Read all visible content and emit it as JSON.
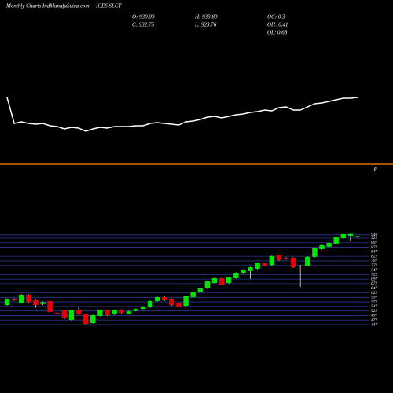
{
  "chart_data": {
    "type": "candlestick",
    "title": "Monthly Charts IndMunafaSutra.com",
    "symbol": "ICES SLCT",
    "info": [
      "O: 930.00",
      "H: 933.80",
      "OC: 0.3",
      "C: 932.75",
      "L: 923.76",
      "OH: 0.41",
      "OL: 0.68"
    ],
    "categories": [
      null,
      null,
      null,
      null,
      null,
      null,
      null,
      null,
      null,
      null,
      null,
      null,
      null,
      null,
      null,
      null,
      null,
      null,
      null,
      null,
      null,
      null,
      null,
      null,
      null,
      null,
      null,
      null,
      null,
      null,
      null,
      null,
      null,
      null,
      null,
      null,
      null,
      null,
      null,
      null,
      null,
      null,
      null,
      null,
      null,
      null,
      null,
      null,
      null,
      null
    ],
    "open": [
      555,
      590,
      568,
      611,
      581,
      560,
      577,
      512,
      525,
      473,
      525,
      503,
      456,
      495,
      525,
      503,
      529,
      508,
      522,
      533,
      542,
      577,
      598,
      590,
      564,
      551,
      598,
      628,
      646,
      676,
      702,
      676,
      702,
      732,
      741,
      754,
      784,
      775,
      827,
      814,
      814,
      771,
      771,
      819,
      862,
      875,
      892,
      922,
      935,
      930.0
    ],
    "high": [
      592,
      593,
      614,
      615,
      584,
      575,
      580,
      515,
      528,
      527,
      546,
      506,
      502,
      528,
      528,
      527,
      531,
      523,
      536,
      548,
      580,
      601,
      602,
      592,
      566,
      605,
      631,
      649,
      688,
      705,
      705,
      709,
      735,
      752,
      765,
      787,
      787,
      826,
      830,
      817,
      817,
      775,
      822,
      869,
      886,
      899,
      930,
      947,
      950,
      933.8
    ],
    "low": [
      552,
      578,
      566,
      566,
      540,
      555,
      510,
      505,
      475,
      470,
      500,
      447,
      452,
      492,
      496,
      500,
      508,
      505,
      520,
      531,
      540,
      574,
      578,
      551,
      543,
      548,
      596,
      626,
      643,
      673,
      663,
      672,
      699,
      729,
      698,
      750,
      768,
      772,
      798,
      803,
      758,
      654,
      768,
      816,
      859,
      872,
      889,
      918,
      905,
      923.76
    ],
    "close": [
      590,
      581,
      611,
      572,
      555,
      570,
      516,
      510,
      482,
      525,
      503,
      451,
      499,
      525,
      499,
      525,
      512,
      520,
      533,
      546,
      577,
      598,
      581,
      555,
      546,
      603,
      628,
      646,
      685,
      702,
      667,
      706,
      732,
      749,
      762,
      784,
      771,
      823,
      801,
      806,
      762,
      767,
      819,
      866,
      883,
      896,
      927,
      944,
      945,
      932.75
    ],
    "up_color": "#00e600",
    "down_color": "#e60000",
    "ylim": [
      417,
      978
    ],
    "yticks": [
      940,
      922,
      897,
      872,
      847,
      822,
      797,
      772,
      747,
      722,
      697,
      672,
      647,
      622,
      597,
      572,
      547,
      522,
      497,
      472,
      447
    ],
    "grid": true,
    "grid_color": "#2b3a8f",
    "line": {
      "color": "#ffffff",
      "ylim": [
        20,
        100
      ],
      "values": [
        76,
        43,
        45,
        43,
        42,
        43,
        40,
        39,
        36,
        38,
        37,
        33,
        36,
        38,
        37,
        39,
        39,
        39,
        40,
        40,
        43,
        44,
        43,
        42,
        41,
        45,
        46,
        48,
        51,
        52,
        50,
        52,
        54,
        55,
        57,
        58,
        60,
        59,
        63,
        64,
        60,
        60,
        64,
        68,
        69,
        71,
        73,
        75,
        75,
        76
      ]
    },
    "indicator": {
      "value": 0,
      "color": "#e07000"
    }
  }
}
